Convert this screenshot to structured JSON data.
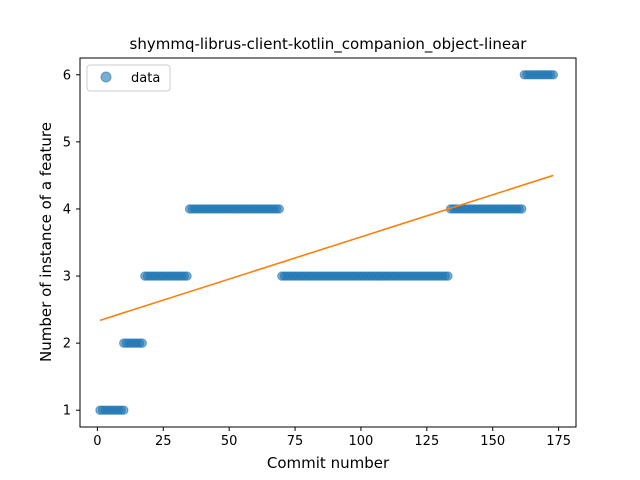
{
  "chart_data": {
    "type": "scatter",
    "title": "shymmq-librus-client-kotlin_companion_object-linear",
    "xlabel": "Commit number",
    "ylabel": "Number of instance of a feature",
    "xlim": [
      -6.6,
      181.6
    ],
    "ylim": [
      0.75,
      6.25
    ],
    "xticks": [
      0,
      25,
      50,
      75,
      100,
      125,
      150,
      175
    ],
    "yticks": [
      1,
      2,
      3,
      4,
      5,
      6
    ],
    "legend": {
      "position": "top-left",
      "entries": [
        "data"
      ]
    },
    "grid": false,
    "colors": {
      "points": "#1f77b4",
      "fit": "#ff7f0e"
    },
    "segments": [
      {
        "x_start": 1,
        "x_end": 10,
        "y": 1
      },
      {
        "x_start": 10,
        "x_end": 17,
        "y": 2
      },
      {
        "x_start": 18,
        "x_end": 34,
        "y": 3
      },
      {
        "x_start": 35,
        "x_end": 69,
        "y": 4
      },
      {
        "x_start": 70,
        "x_end": 133,
        "y": 3
      },
      {
        "x_start": 134,
        "x_end": 161,
        "y": 4
      },
      {
        "x_start": 162,
        "x_end": 173,
        "y": 6
      }
    ],
    "fit_line": {
      "x": [
        1,
        173
      ],
      "y": [
        2.34,
        4.5
      ]
    }
  }
}
